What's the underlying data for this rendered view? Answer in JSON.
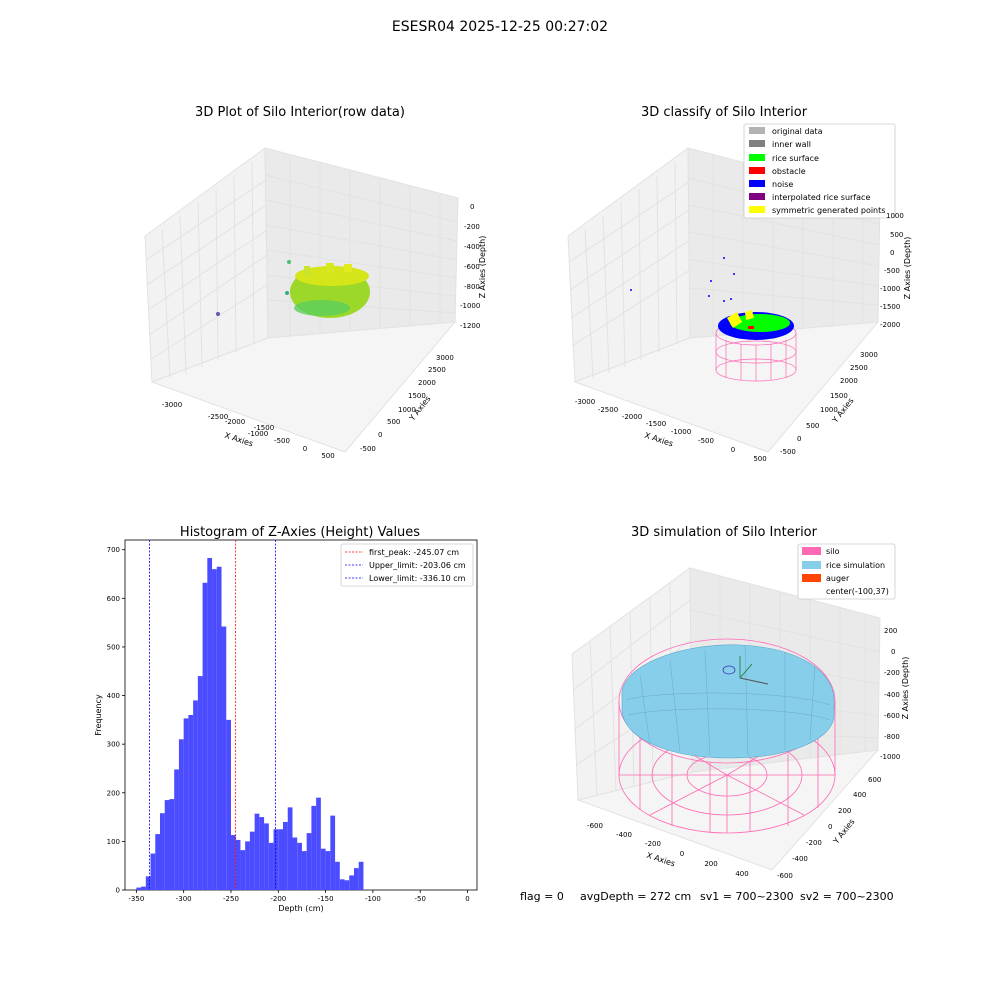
{
  "suptitle": "ESESR04 2025-12-25 00:27:02",
  "footer": {
    "flag": "flag = 0",
    "avg_depth": "avgDepth = 272 cm",
    "sv1": "sv1 = 700~2300",
    "sv2": "sv2 = 700~2300"
  },
  "colors": {
    "pink": "#ff69b4",
    "skyblue": "#87ceeb",
    "hist_bar": "#4b4bff",
    "green": "#00ff00",
    "blue": "#0000ff",
    "yellow": "#ffff00",
    "purple": "#800080",
    "red": "#ff0000",
    "gray": "#808080",
    "lightgray": "#b3b3b3",
    "orange": "#ff4500"
  },
  "chart_data": [
    {
      "type": "scatter",
      "title": "3D Plot of Silo Interior(row data)",
      "xlabel": "X Axies",
      "ylabel": "Y Axies",
      "zlabel": "Z Axies (Depth)",
      "x_ticks": [
        "-3000",
        "-2500",
        "-2000",
        "-1500",
        "-1000",
        "-500",
        "0",
        "500"
      ],
      "y_ticks": [
        "-500",
        "0",
        "500",
        "1000",
        "1500",
        "2000",
        "2500",
        "3000"
      ],
      "z_ticks": [
        "0",
        "-200",
        "-400",
        "-600",
        "-800",
        "-1000",
        "-1200"
      ],
      "xlim": [
        -3200,
        600
      ],
      "ylim": [
        -600,
        3200
      ],
      "zlim": [
        -1300,
        100
      ]
    },
    {
      "type": "scatter",
      "title": "3D classify of Silo Interior",
      "xlabel": "X Axies",
      "ylabel": "Y Axies",
      "zlabel": "Z Axies (Depth)",
      "x_ticks": [
        "-3000",
        "-2500",
        "-2000",
        "-1500",
        "-1000",
        "-500",
        "0",
        "500"
      ],
      "y_ticks": [
        "-500",
        "0",
        "500",
        "1000",
        "1500",
        "2000",
        "2500",
        "3000"
      ],
      "z_ticks": [
        "1000",
        "500",
        "0",
        "-500",
        "-1000",
        "-1500",
        "-2000"
      ],
      "legend": [
        {
          "name": "original data",
          "color": "#b3b3b3"
        },
        {
          "name": "inner wall",
          "color": "#808080"
        },
        {
          "name": "rice surface",
          "color": "#00ff00"
        },
        {
          "name": "obstacle",
          "color": "#ff0000"
        },
        {
          "name": "noise",
          "color": "#0000ff"
        },
        {
          "name": "interpolated rice surface",
          "color": "#800080"
        },
        {
          "name": "symmetric generated points",
          "color": "#ffff00"
        }
      ],
      "legend_position": "top-right"
    },
    {
      "type": "bar",
      "title": "Histogram of Z-Axies (Height) Values",
      "xlabel": "Depth (cm)",
      "ylabel": "Frequency",
      "xlim": [
        -362,
        10
      ],
      "ylim": [
        0,
        720
      ],
      "x_ticks": [
        -350,
        -300,
        -250,
        -200,
        -150,
        -100,
        -50,
        0
      ],
      "y_ticks": [
        0,
        100,
        200,
        300,
        400,
        500,
        600,
        700
      ],
      "bin_start": -350,
      "bin_width": 5,
      "values": [
        5,
        7,
        28,
        75,
        115,
        158,
        185,
        187,
        248,
        310,
        353,
        360,
        390,
        440,
        632,
        683,
        660,
        665,
        542,
        350,
        113,
        103,
        82,
        100,
        120,
        157,
        150,
        137,
        97,
        125,
        125,
        140,
        170,
        108,
        97,
        80,
        117,
        173,
        190,
        85,
        80,
        153,
        58,
        22,
        20,
        30,
        45,
        58
      ],
      "vlines": [
        {
          "label": "first_peak: -245.07 cm",
          "x": -245.07,
          "color": "#ff0000"
        },
        {
          "label": "Upper_limit: -203.06 cm",
          "x": -203.06,
          "color": "#0000ff"
        },
        {
          "label": "Lower_limit: -336.10 cm",
          "x": -336.1,
          "color": "#0000ff"
        }
      ],
      "legend_position": "top-right",
      "grid": false
    },
    {
      "type": "surface",
      "title": "3D simulation of Silo Interior",
      "xlabel": "X Axies",
      "ylabel": "Y Axies",
      "zlabel": "Z Axies (Depth)",
      "x_ticks": [
        "-600",
        "-400",
        "-200",
        "0",
        "200",
        "400"
      ],
      "y_ticks": [
        "-600",
        "-400",
        "-200",
        "0",
        "200",
        "400",
        "600"
      ],
      "z_ticks": [
        "200",
        "0",
        "-200",
        "-400",
        "-600",
        "-800",
        "-1000"
      ],
      "legend": [
        {
          "name": "silo",
          "color": "#ff69b4"
        },
        {
          "name": "rice simulation",
          "color": "#87ceeb"
        },
        {
          "name": "auger",
          "color": "#ff4500"
        },
        {
          "name": "center(-100,37)",
          "color": ""
        }
      ],
      "legend_position": "top-right"
    }
  ]
}
